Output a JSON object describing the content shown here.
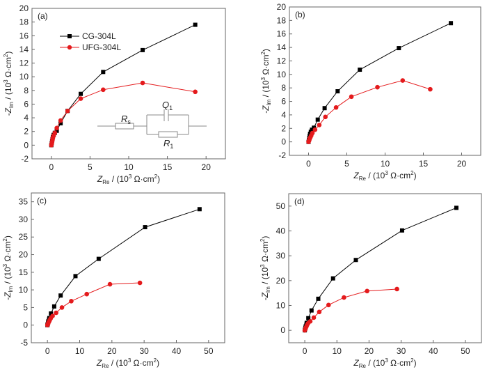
{
  "colors": {
    "cg": "#000000",
    "ufg": "#e41a1c",
    "frame": "#666666"
  },
  "chart_data": [
    {
      "type": "line",
      "panel_label": "(a)",
      "xlabel": "Z_Re / (10^3 Ω·cm^2)",
      "ylabel": "-Z_Im / (10^3 Ω·cm^2)",
      "xlim": [
        -2.5,
        22.5
      ],
      "ylim": [
        -2,
        20
      ],
      "xticks": [
        0,
        5,
        10,
        15,
        20
      ],
      "yticks": [
        -2,
        0,
        2,
        4,
        6,
        8,
        10,
        12,
        14,
        16,
        18,
        20
      ],
      "grid": false,
      "legend": {
        "position": "top-left",
        "entries": [
          "CG-304L",
          "UFG-304L"
        ]
      },
      "inset": {
        "type": "equivalent-circuit",
        "labels": [
          "Rs",
          "Q1",
          "R1"
        ]
      },
      "series": [
        {
          "name": "CG-304L",
          "marker": "square",
          "x": [
            0,
            0.05,
            0.1,
            0.15,
            0.2,
            0.3,
            0.45,
            0.7,
            1.2,
            2.1,
            3.8,
            6.7,
            11.8,
            18.6
          ],
          "y": [
            0,
            0.3,
            0.6,
            0.9,
            1.2,
            1.5,
            1.8,
            2.1,
            3.2,
            5.0,
            7.5,
            10.7,
            13.9,
            17.6
          ]
        },
        {
          "name": "UFG-304L",
          "marker": "circle",
          "x": [
            0,
            0.05,
            0.1,
            0.15,
            0.2,
            0.3,
            0.45,
            0.7,
            1.2,
            2.1,
            3.8,
            6.7,
            11.8,
            18.6
          ],
          "y": [
            0,
            0.2,
            0.5,
            0.8,
            1.1,
            1.4,
            1.8,
            2.5,
            3.6,
            5.0,
            6.8,
            8.1,
            9.1,
            7.8
          ]
        }
      ]
    },
    {
      "type": "line",
      "panel_label": "(b)",
      "xlabel": "Z_Re / (10^3 Ω·cm^2)",
      "ylabel": "-Z_Im / (10^3 Ω·cm^2)",
      "xlim": [
        -2.5,
        22.5
      ],
      "ylim": [
        -2,
        20
      ],
      "xticks": [
        0,
        5,
        10,
        15,
        20
      ],
      "yticks": [
        -2,
        0,
        2,
        4,
        6,
        8,
        10,
        12,
        14,
        16,
        18,
        20
      ],
      "grid": false,
      "series": [
        {
          "name": "CG-304L",
          "marker": "square",
          "x": [
            0,
            0.05,
            0.1,
            0.15,
            0.2,
            0.3,
            0.45,
            0.7,
            1.2,
            2.1,
            3.8,
            6.7,
            11.8,
            18.6
          ],
          "y": [
            0,
            0.3,
            0.6,
            0.9,
            1.2,
            1.5,
            1.8,
            2.1,
            3.3,
            5.0,
            7.5,
            10.7,
            13.9,
            17.6
          ]
        },
        {
          "name": "UFG-304L",
          "marker": "circle",
          "x": [
            0,
            0.05,
            0.1,
            0.15,
            0.25,
            0.35,
            0.5,
            0.85,
            1.4,
            2.2,
            3.6,
            5.6,
            9.0,
            12.3,
            15.9
          ],
          "y": [
            0,
            0.15,
            0.3,
            0.5,
            0.7,
            0.95,
            1.3,
            1.8,
            2.5,
            3.7,
            5.1,
            6.7,
            8.1,
            9.1,
            7.8
          ]
        }
      ]
    },
    {
      "type": "line",
      "panel_label": "(c)",
      "xlabel": "Z_Re / (10^3 Ω·cm^2)",
      "ylabel": "-Z_Im / (10^3 Ω·cm^2)",
      "xlim": [
        -5,
        55
      ],
      "ylim": [
        -5,
        37.5
      ],
      "xticks": [
        0,
        10,
        20,
        30,
        40,
        50
      ],
      "yticks": [
        -5,
        0,
        5,
        10,
        15,
        20,
        25,
        30,
        35
      ],
      "grid": false,
      "series": [
        {
          "name": "CG-304L",
          "marker": "square",
          "x": [
            0,
            0.1,
            0.2,
            0.3,
            0.5,
            0.6,
            1.1,
            2.1,
            4.1,
            8.7,
            15.9,
            30.3,
            47.2
          ],
          "y": [
            0,
            0.3,
            0.7,
            1.1,
            1.6,
            2.0,
            3.3,
            5.3,
            8.4,
            13.9,
            18.8,
            27.8,
            32.9
          ]
        },
        {
          "name": "UFG-304L",
          "marker": "circle",
          "x": [
            0,
            0.1,
            0.2,
            0.3,
            0.5,
            0.7,
            1.0,
            1.6,
            2.7,
            4.5,
            7.4,
            12.2,
            19.4,
            28.7
          ],
          "y": [
            0,
            0.2,
            0.4,
            0.7,
            1.0,
            1.4,
            1.9,
            2.6,
            3.5,
            5.0,
            6.8,
            8.8,
            11.6,
            12.0
          ]
        }
      ]
    },
    {
      "type": "line",
      "panel_label": "(d)",
      "xlabel": "Z_Re / (10^3 Ω·cm^2)",
      "ylabel": "-Z_Im / (10^3 Ω·cm^2)",
      "xlim": [
        -5,
        55
      ],
      "ylim": [
        -5,
        55
      ],
      "xticks": [
        0,
        10,
        20,
        30,
        40,
        50
      ],
      "yticks": [
        0,
        10,
        20,
        30,
        40,
        50
      ],
      "grid": false,
      "series": [
        {
          "name": "CG-304L",
          "marker": "square",
          "x": [
            0,
            0.1,
            0.2,
            0.3,
            0.5,
            0.6,
            1.1,
            2.1,
            4.2,
            8.8,
            15.9,
            30.3,
            47.2
          ],
          "y": [
            0,
            0.5,
            1.0,
            1.6,
            2.3,
            3.0,
            4.9,
            8.0,
            12.7,
            20.9,
            28.3,
            40.2,
            49.3
          ]
        },
        {
          "name": "UFG-304L",
          "marker": "circle",
          "x": [
            0,
            0.1,
            0.2,
            0.3,
            0.5,
            0.7,
            1.0,
            1.7,
            2.8,
            4.5,
            7.4,
            12.2,
            19.4,
            28.7
          ],
          "y": [
            0,
            0.3,
            0.6,
            1.0,
            1.5,
            2.1,
            2.8,
            3.6,
            5.1,
            7.4,
            10.2,
            13.2,
            15.8,
            16.6
          ]
        }
      ]
    }
  ],
  "labels": {
    "xlabel_main": "Z",
    "xlabel_sub": "Re",
    "xlabel_unit_pre": " / (10",
    "xlabel_unit_sup": "3",
    "xlabel_unit_mid": " Ω·cm",
    "xlabel_unit_sup2": "2",
    "xlabel_unit_post": ")",
    "ylabel_prefix": "-Z",
    "ylabel_sub": "Im",
    "legend_cg": "CG-304L",
    "legend_ufg": "UFG-304L",
    "circuit_rs": "R",
    "circuit_rs_sub": "s",
    "circuit_q": "Q",
    "circuit_q_sub": "1",
    "circuit_r1": "R",
    "circuit_r1_sub": "1"
  }
}
